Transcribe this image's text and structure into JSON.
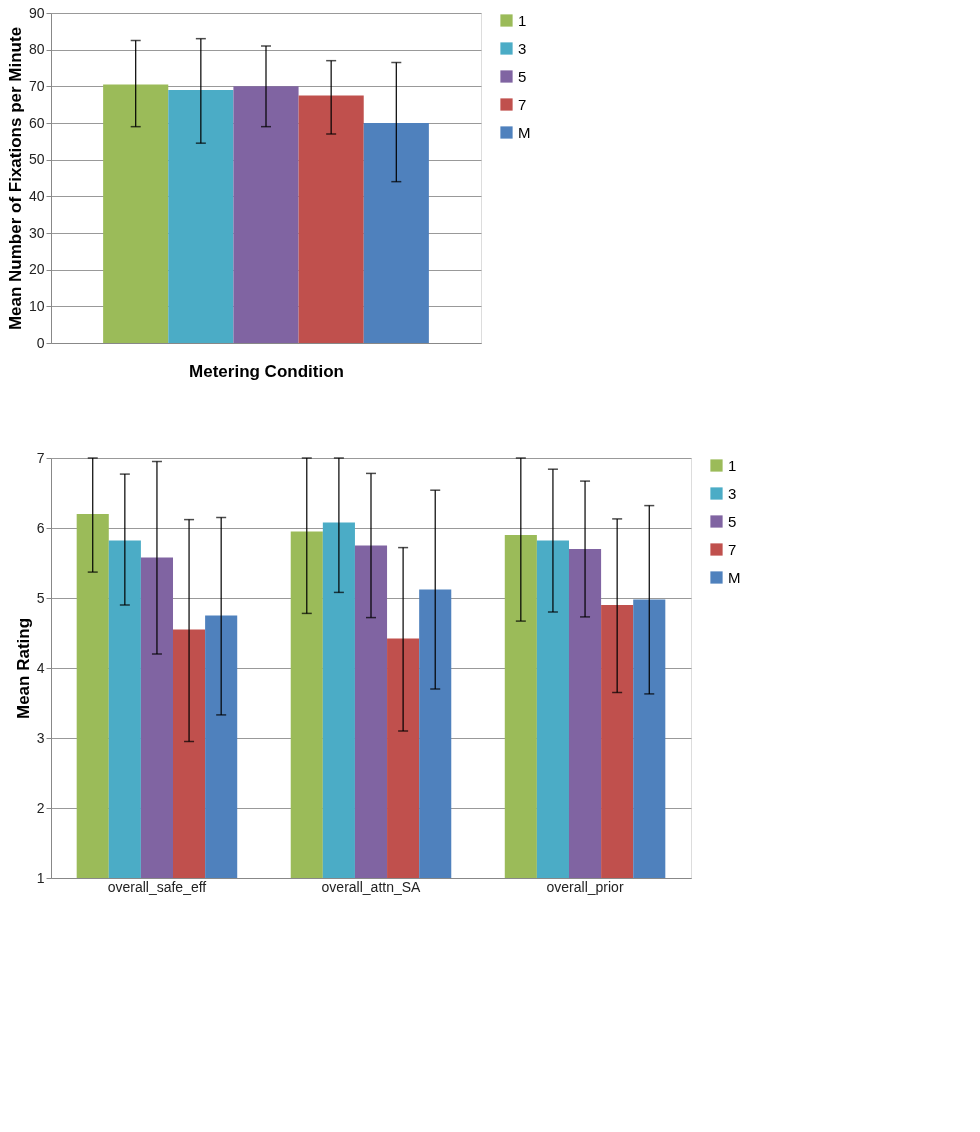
{
  "chart_data": [
    {
      "type": "bar",
      "categories": [
        null
      ],
      "xlabel": "Metering Condition",
      "ylabel": "Mean Number of Fixations per Minute",
      "ylim": [
        0,
        90
      ],
      "yticks": [
        0,
        10,
        20,
        30,
        40,
        50,
        60,
        70,
        80,
        90
      ],
      "grid": "y",
      "legend": "right",
      "series": [
        {
          "name": "1",
          "color": "#9bbb59",
          "values": [
            70.5
          ],
          "errors": [
            [
              59,
              82.5
            ]
          ]
        },
        {
          "name": "3",
          "color": "#4bacc6",
          "values": [
            69
          ],
          "errors": [
            [
              54.5,
              83
            ]
          ]
        },
        {
          "name": "5",
          "color": "#8064a2",
          "values": [
            70
          ],
          "errors": [
            [
              59,
              81
            ]
          ]
        },
        {
          "name": "7",
          "color": "#c0504d",
          "values": [
            67.5
          ],
          "errors": [
            [
              57,
              77
            ]
          ]
        },
        {
          "name": "M",
          "color": "#4f81bd",
          "values": [
            60
          ],
          "errors": [
            [
              44,
              76.5
            ]
          ]
        }
      ]
    },
    {
      "type": "bar",
      "categories": [
        "overall_safe_eff",
        "overall_attn_SA",
        "overall_prior"
      ],
      "ylabel": "Mean Rating",
      "ylim": [
        1,
        7
      ],
      "yticks": [
        1,
        2,
        3,
        4,
        5,
        6,
        7
      ],
      "grid": "y",
      "legend": "right",
      "series": [
        {
          "name": "1",
          "color": "#9bbb59",
          "values": [
            6.2,
            5.95,
            5.9
          ],
          "errors": [
            [
              5.37,
              7
            ],
            [
              4.78,
              7
            ],
            [
              4.67,
              7
            ]
          ]
        },
        {
          "name": "3",
          "color": "#4bacc6",
          "values": [
            5.82,
            6.08,
            5.82
          ],
          "errors": [
            [
              4.9,
              6.77
            ],
            [
              5.08,
              7
            ],
            [
              4.8,
              6.84
            ]
          ]
        },
        {
          "name": "5",
          "color": "#8064a2",
          "values": [
            5.58,
            5.75,
            5.7
          ],
          "errors": [
            [
              4.2,
              6.95
            ],
            [
              4.72,
              6.78
            ],
            [
              4.73,
              6.67
            ]
          ]
        },
        {
          "name": "7",
          "color": "#c0504d",
          "values": [
            4.55,
            4.42,
            4.9
          ],
          "errors": [
            [
              2.95,
              6.12
            ],
            [
              3.1,
              5.72
            ],
            [
              3.65,
              6.13
            ]
          ]
        },
        {
          "name": "M",
          "color": "#4f81bd",
          "values": [
            4.75,
            5.12,
            4.98
          ],
          "errors": [
            [
              3.33,
              6.15
            ],
            [
              3.7,
              6.54
            ],
            [
              3.63,
              6.32
            ]
          ]
        }
      ]
    }
  ]
}
